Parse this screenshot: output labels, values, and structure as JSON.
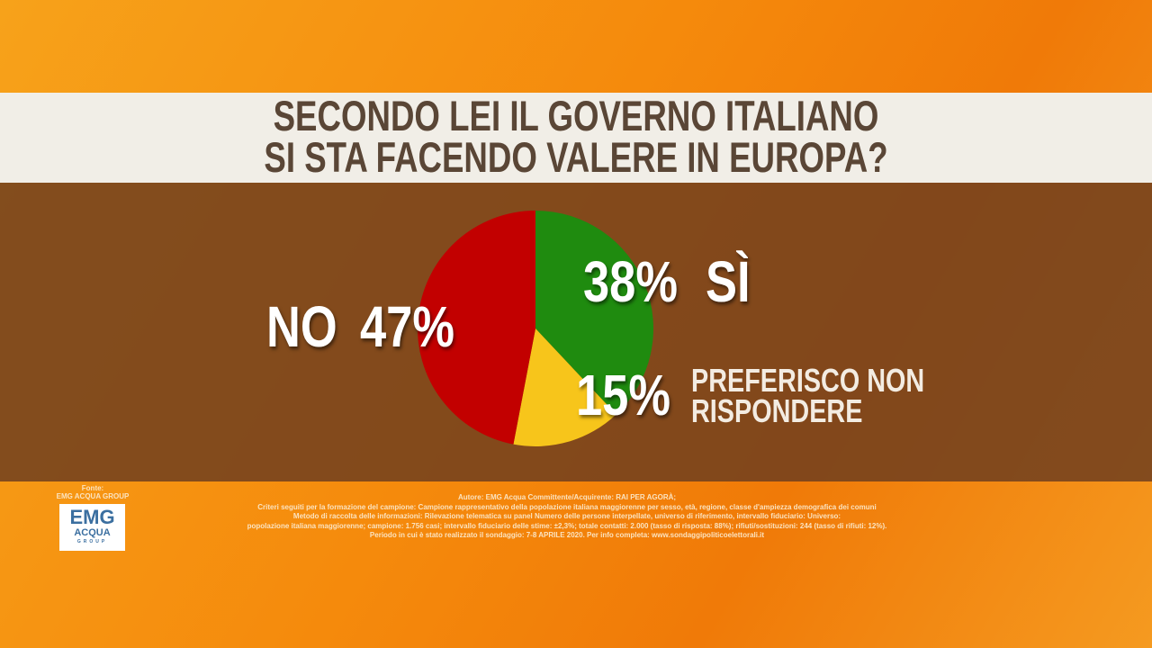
{
  "header": {
    "title": [
      "SECONDO LEI IL GOVERNO ITALIANO",
      "SI STA FACENDO VALERE IN EUROPA?"
    ]
  },
  "chart_data": {
    "type": "pie",
    "categories": [
      "SÌ",
      "PREFERISCO NON RISPONDERE",
      "NO"
    ],
    "values": [
      38,
      15,
      47
    ],
    "value_labels": [
      "38%",
      "15%",
      "47%"
    ],
    "colors": [
      "#1f8b0f",
      "#f7c51b",
      "#c20000"
    ]
  },
  "footer": {
    "source_label": "Fonte:",
    "source": "EMG ACQUA GROUP",
    "logo": [
      "EMG",
      "ACQUA",
      "GROUP"
    ],
    "notes": [
      "Autore: EMG Acqua Committente/Acquirente: RAI PER AGORÀ;",
      "Criteri seguiti per la formazione del campione: Campione rappresentativo della popolazione italiana maggiorenne per sesso, età, regione, classe d'ampiezza demografica dei comuni",
      "Metodo di raccolta delle informazioni: Rilevazione telematica su panel Numero delle persone interpellate, universo di riferimento, intervallo fiduciario: Universo:",
      "popolazione italiana maggiorenne; campione: 1.756 casi; intervallo fiduciario delle stime: ±2,3%; totale contatti: 2.000 (tasso di risposta: 88%); rifiuti/sostituzioni: 244 (tasso di rifiuti: 12%).",
      "Periodo in cui è stato realizzato il sondaggio: 7-8 APRILE 2020. Per info completa: www.sondaggipoliticoelettorali.it"
    ]
  }
}
